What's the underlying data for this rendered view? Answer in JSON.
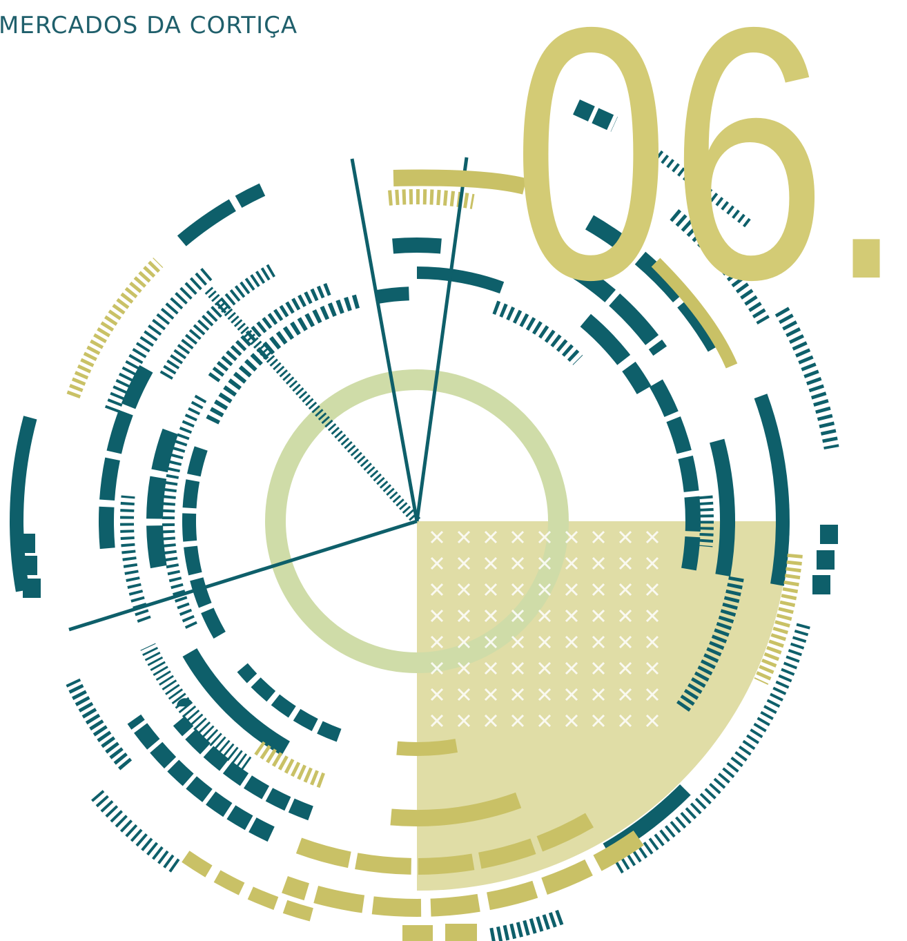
{
  "header": {
    "title": "MERCADOS DA CORTIÇA",
    "number": "06."
  }
}
